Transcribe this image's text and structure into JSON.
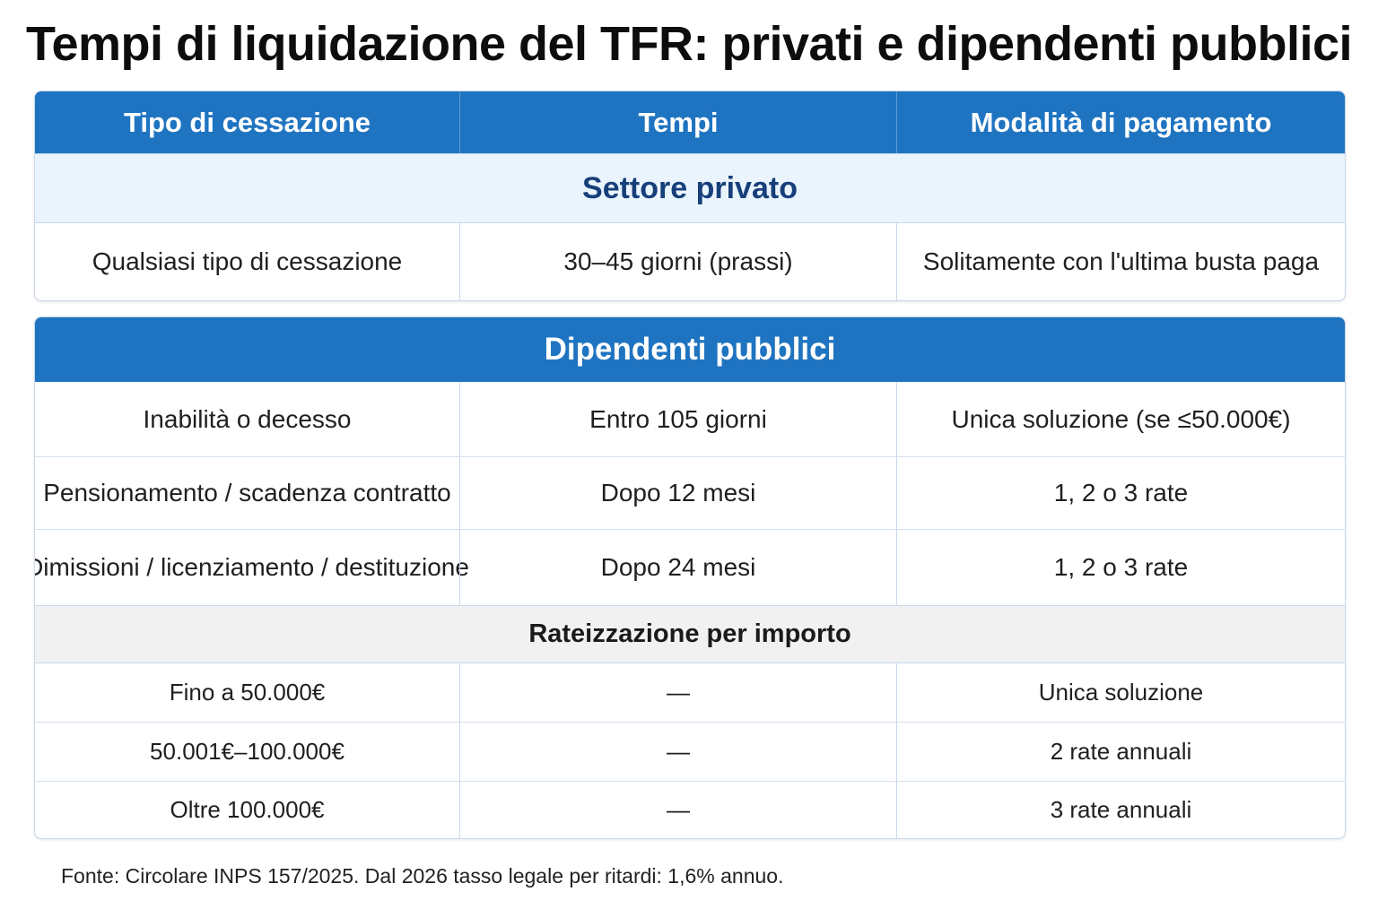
{
  "title": "Tempi di liquidazione del TFR: privati e dipendenti pubblici",
  "header": {
    "col1": "Tipo di cessazione",
    "col2": "Tempi",
    "col3": "Modalità di pagamento"
  },
  "private": {
    "section_label": "Settore privato",
    "rows": [
      {
        "type": "Qualsiasi tipo di cessazione",
        "time": "30–45 giorni (prassi)",
        "payment": "Solitamente con l'ultima busta paga"
      }
    ]
  },
  "public": {
    "section_label": "Dipendenti pubblici",
    "rows": [
      {
        "type": "Inabilità o decesso",
        "time": "Entro 105 giorni",
        "payment": "Unica soluzione (se ≤50.000€)"
      },
      {
        "type": "Pensionamento / scadenza contratto",
        "time": "Dopo 12 mesi",
        "payment": "1, 2 o 3 rate"
      },
      {
        "type": "Dimissioni / licenziamento / destituzione",
        "time": "Dopo 24 mesi",
        "payment": "1, 2 o 3 rate"
      }
    ]
  },
  "installments": {
    "section_label": "Rateizzazione per importo",
    "rows": [
      {
        "amount": "Fino a 50.000€",
        "time": "—",
        "payment": "Unica soluzione"
      },
      {
        "amount": "50.001€–100.000€",
        "time": "—",
        "payment": "2 rate annuali"
      },
      {
        "amount": "Oltre 100.000€",
        "time": "—",
        "payment": "3 rate annuali"
      }
    ]
  },
  "footer": "Fonte: Circolare INPS 157/2025. Dal 2026 tasso legale per ritardi: 1,6% annuo.",
  "colors": {
    "header_blue": "#1f74c1",
    "private_band": "#eaf4fd",
    "private_text": "#173f7a",
    "rate_band": "#f1f1f1"
  }
}
